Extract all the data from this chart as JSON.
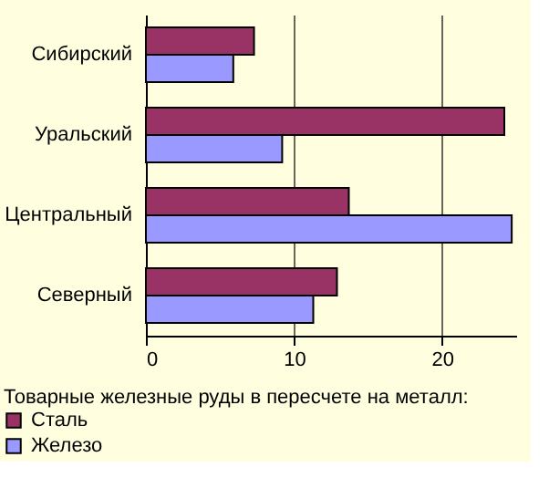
{
  "chart_data": {
    "type": "bar",
    "orientation": "horizontal",
    "categories": [
      "Сибирский",
      "Уральский",
      "Центральный",
      "Северный"
    ],
    "legend_title": "Товарные железные руды в пересчете на металл:",
    "series": [
      {
        "name": "Сталь",
        "color": "#993366",
        "values": [
          7.3,
          24.2,
          13.7,
          12.9
        ]
      },
      {
        "name": "Железо",
        "color": "#9999ff",
        "values": [
          5.9,
          9.2,
          24.7,
          11.3
        ]
      }
    ],
    "xlim": [
      0,
      25
    ],
    "xticks": [
      0,
      10,
      20
    ],
    "grid": "x",
    "legend": "bottom left"
  }
}
